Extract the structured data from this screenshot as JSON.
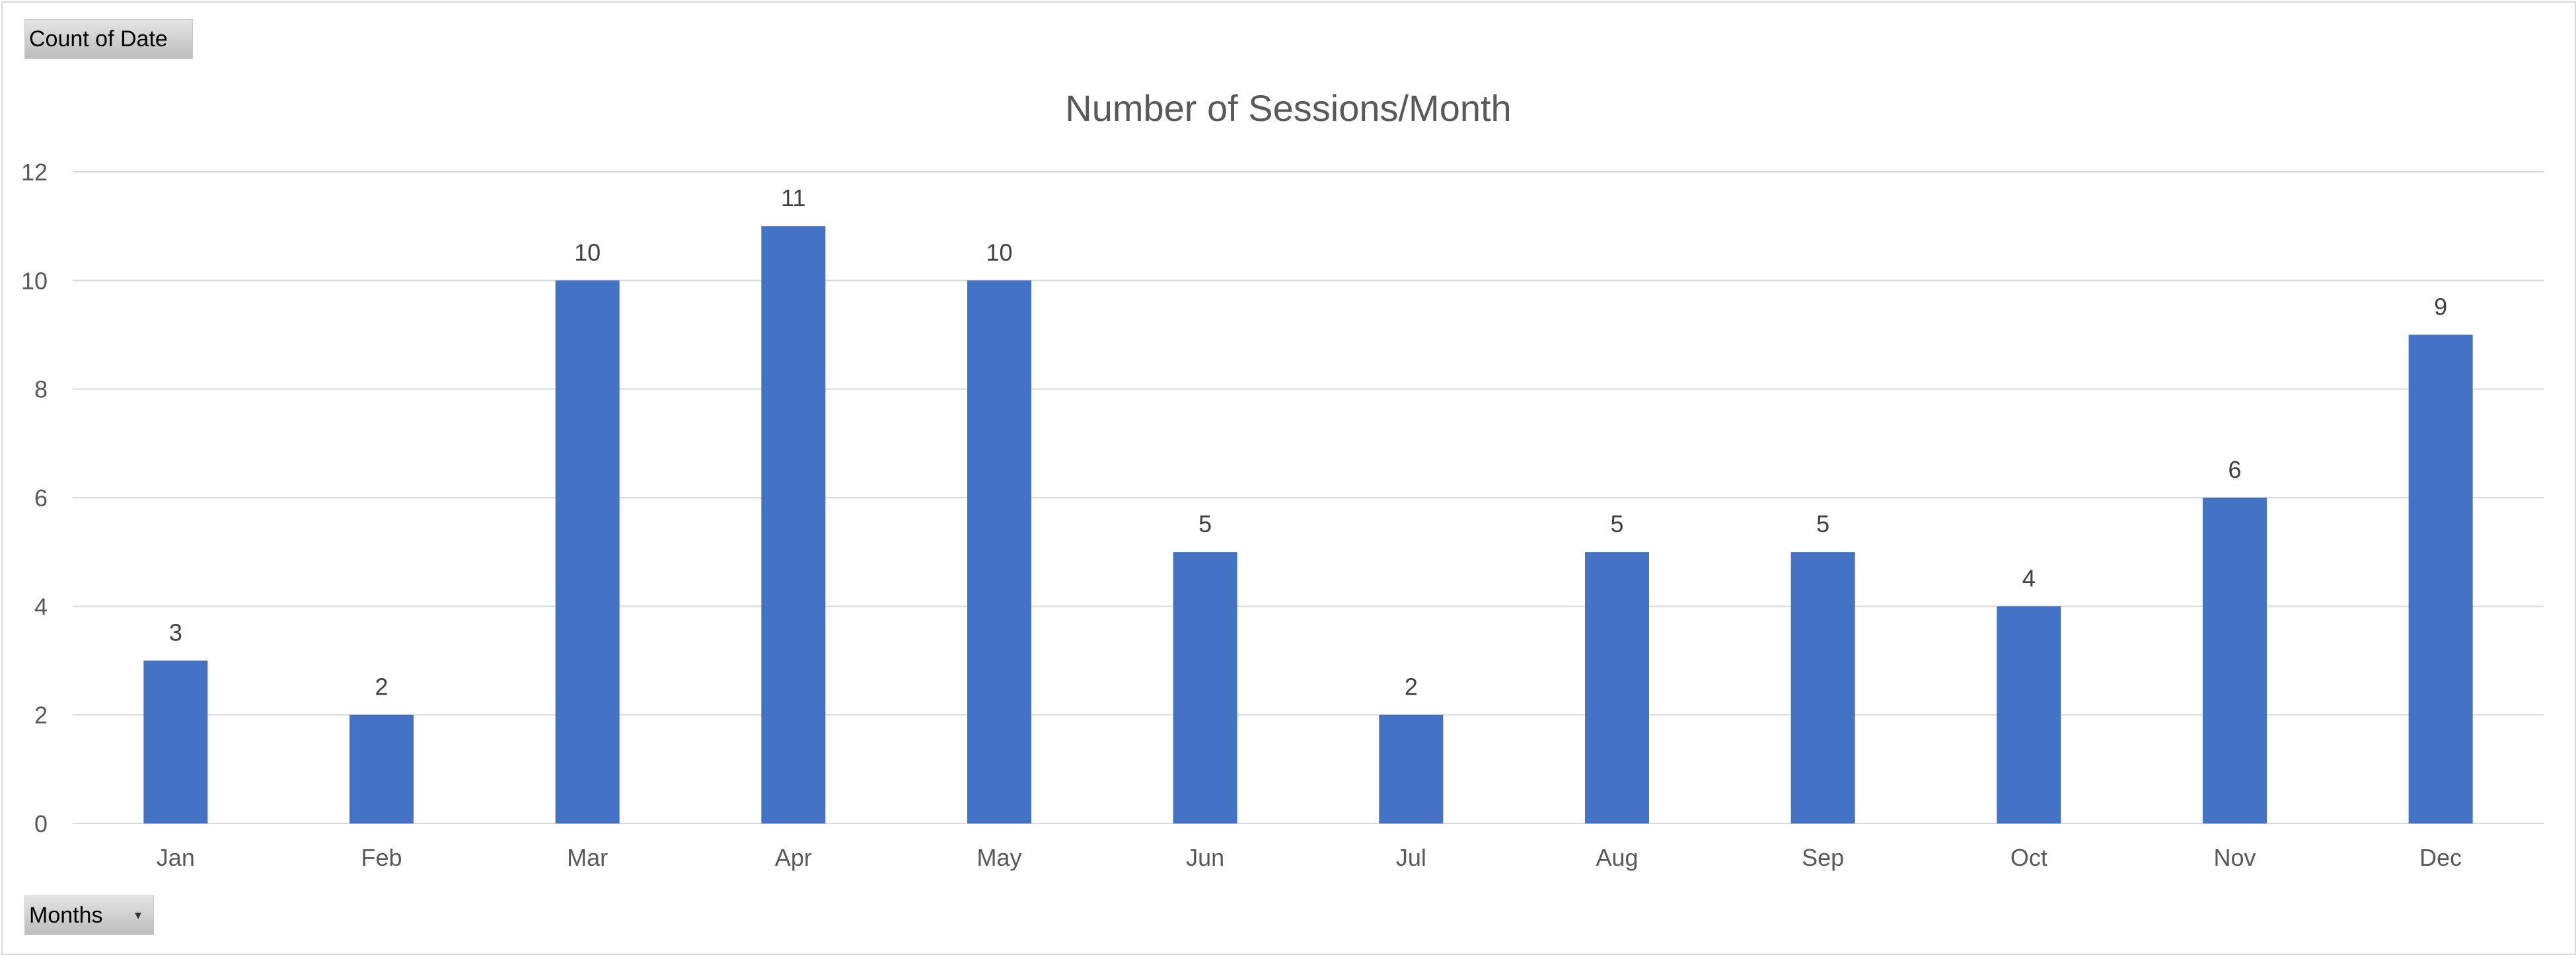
{
  "pivot": {
    "value_field": "Count of Date",
    "axis_field": "Months",
    "dropdown_icon": "dropdown-arrow-icon"
  },
  "chart_data": {
    "type": "bar",
    "title": "Number of Sessions/Month",
    "categories": [
      "Jan",
      "Feb",
      "Mar",
      "Apr",
      "May",
      "Jun",
      "Jul",
      "Aug",
      "Sep",
      "Oct",
      "Nov",
      "Dec"
    ],
    "values": [
      3,
      2,
      10,
      11,
      10,
      5,
      2,
      5,
      5,
      4,
      6,
      9
    ],
    "yticks": [
      "0",
      "2",
      "4",
      "6",
      "8",
      "10",
      "12"
    ],
    "ylim": [
      0,
      12
    ],
    "grid": true,
    "legend": "none",
    "data_labels": true,
    "bar_color": "#4472c4",
    "grid_color": "#d9d9d9"
  }
}
